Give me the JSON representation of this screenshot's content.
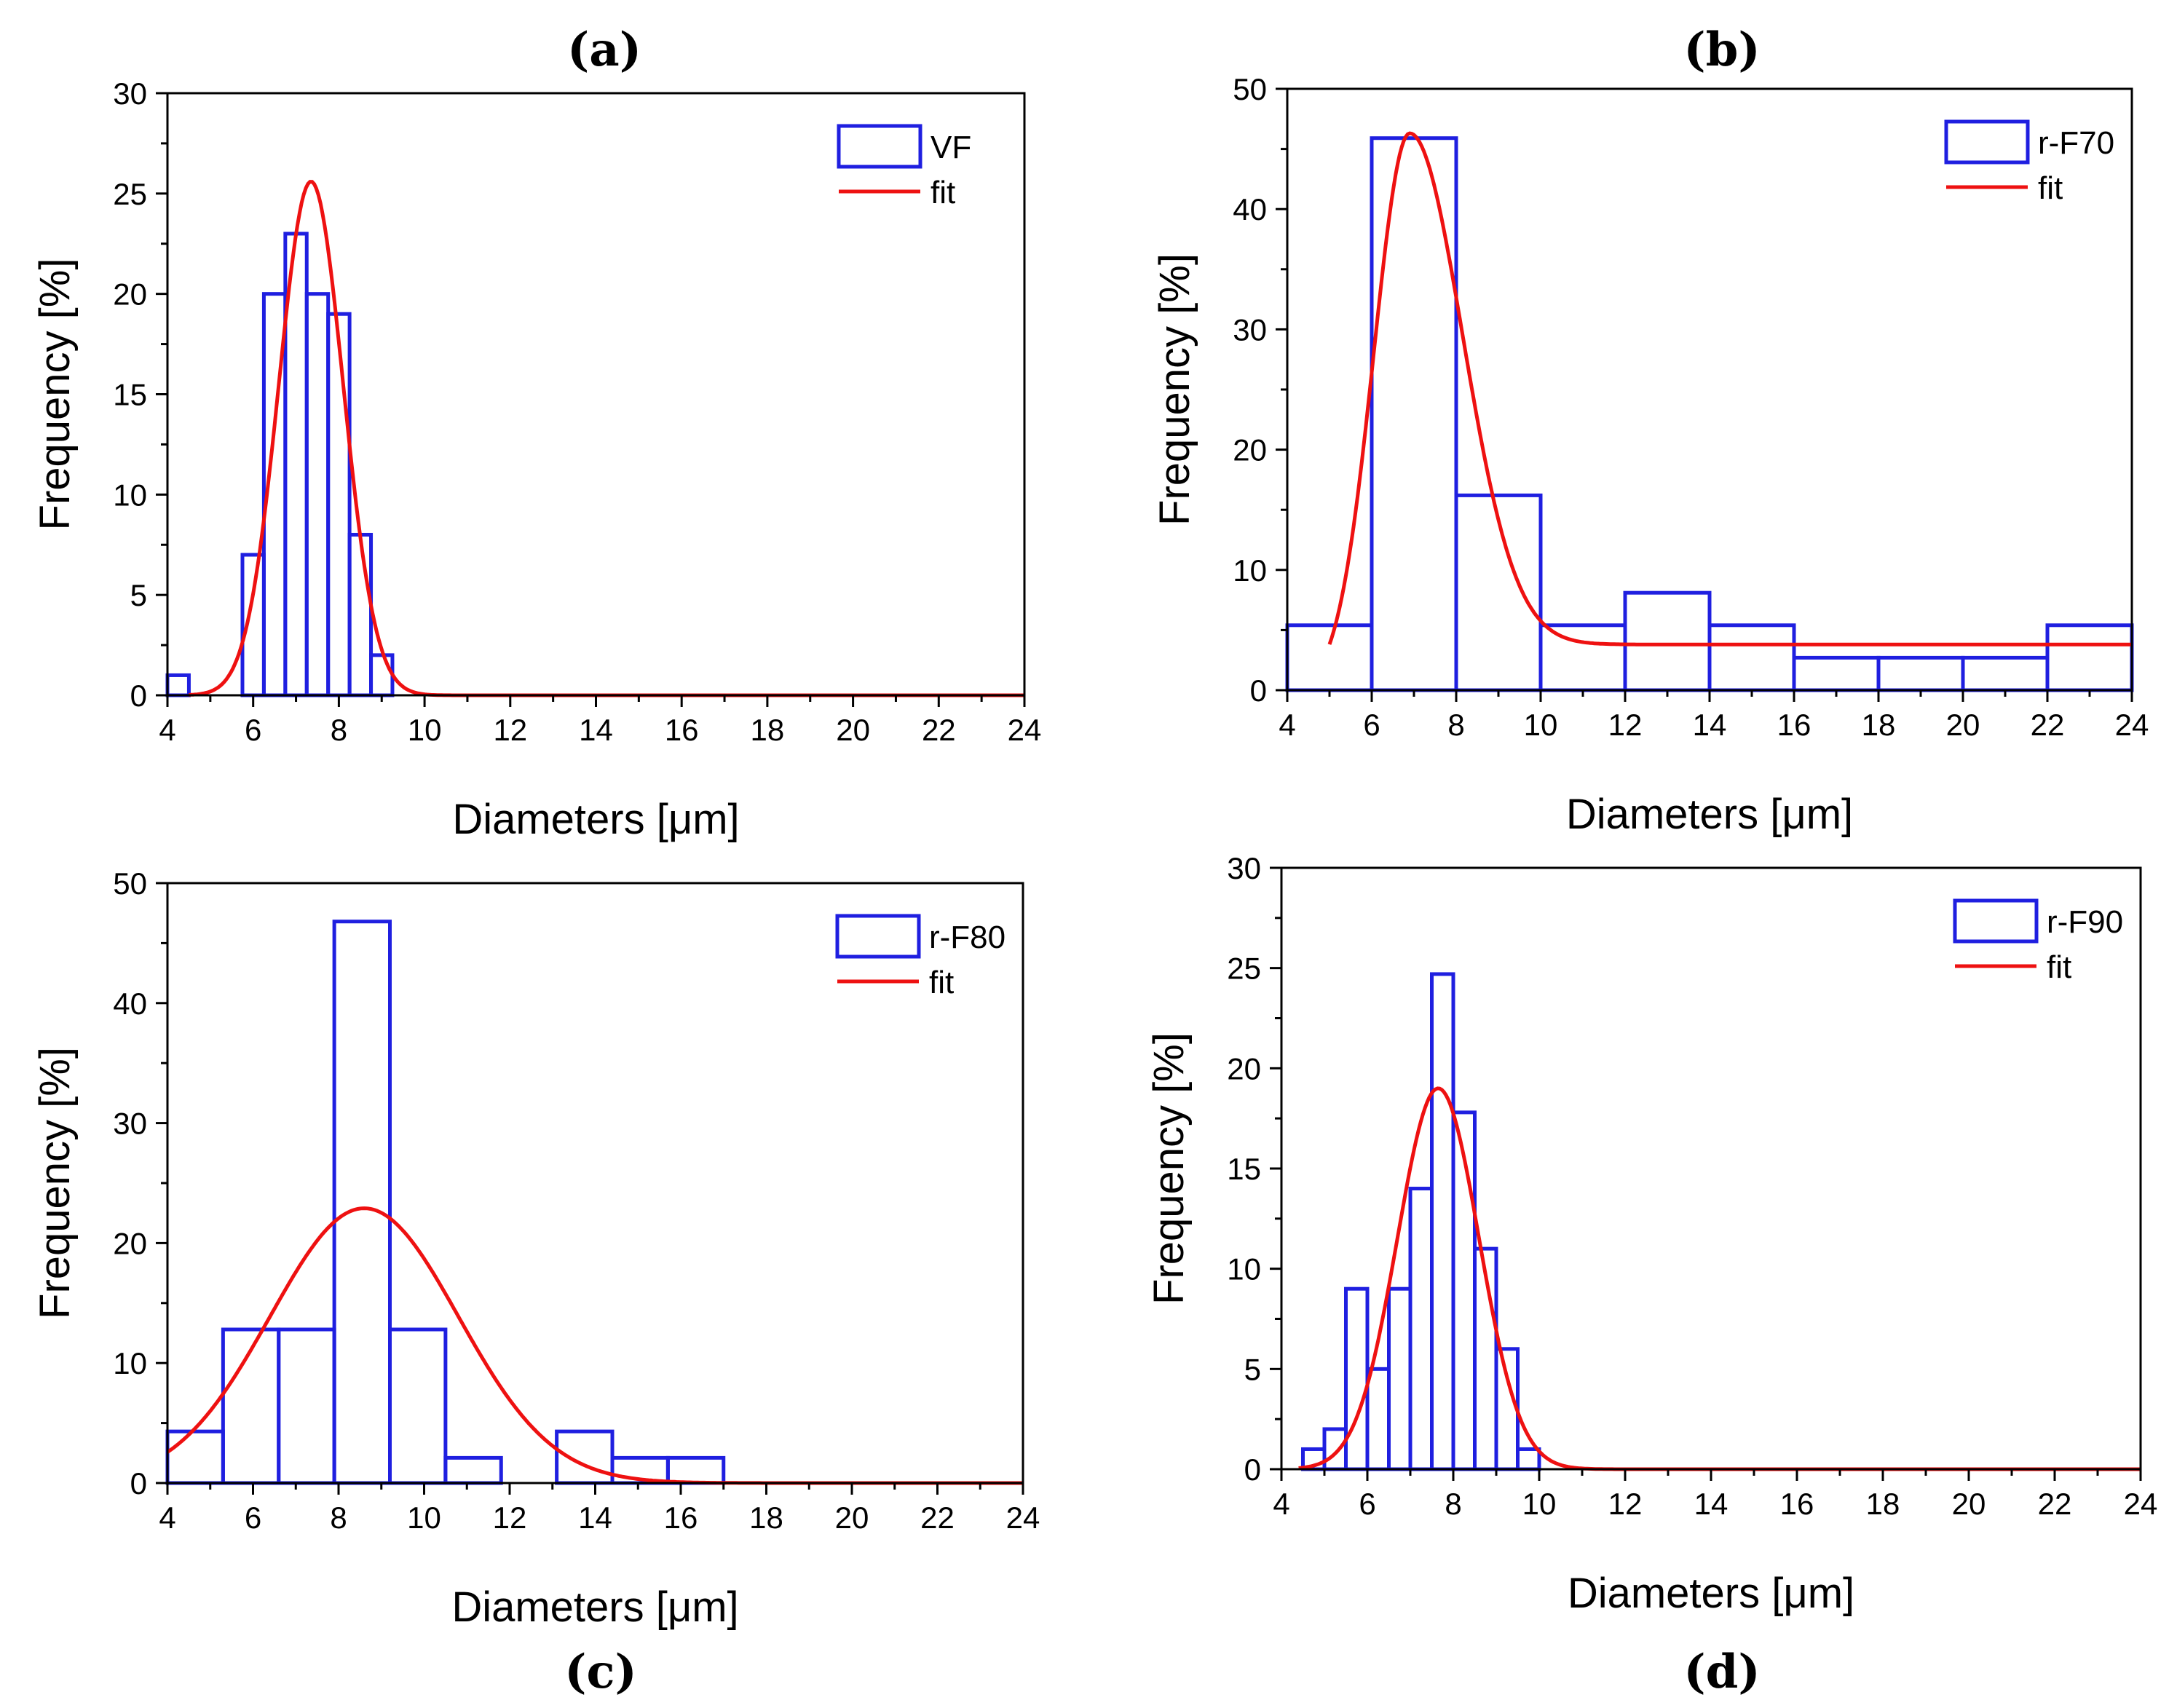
{
  "chart_data": [
    {
      "type": "bar",
      "panel_label": "(a)",
      "xlabel": "Diameters [μm]",
      "ylabel": "Frequency [%]",
      "xlim": [
        4,
        24
      ],
      "ylim": [
        0,
        30
      ],
      "xticks": [
        4,
        6,
        8,
        10,
        12,
        14,
        16,
        18,
        20,
        22,
        24
      ],
      "yticks": [
        0,
        5,
        10,
        15,
        20,
        25,
        30
      ],
      "legend_position": "top-right",
      "grid": false,
      "histogram": {
        "name": "VF",
        "bin_width": 0.5,
        "bin_starts": [
          4.0,
          5.75,
          6.25,
          6.75,
          7.25,
          7.75,
          8.25,
          8.75
        ],
        "values": [
          1,
          7,
          20,
          23,
          20,
          19,
          8,
          2
        ]
      },
      "fit": {
        "name": "fit",
        "kind": "gaussian",
        "center": 7.35,
        "peak": 25.6,
        "sigma": 0.75,
        "offset": 0,
        "x_start": 4.5,
        "x_end": 24
      }
    },
    {
      "type": "bar",
      "panel_label": "(b)",
      "xlabel": "Diameters [μm]",
      "ylabel": "Frequency [%]",
      "xlim": [
        4,
        24
      ],
      "ylim": [
        0,
        50
      ],
      "xticks": [
        4,
        6,
        8,
        10,
        12,
        14,
        16,
        18,
        20,
        22,
        24
      ],
      "yticks": [
        0,
        10,
        20,
        30,
        40,
        50
      ],
      "legend_position": "top-right",
      "grid": false,
      "histogram": {
        "name": "r-F70",
        "bin_width": 2,
        "bin_starts": [
          4,
          6,
          8,
          10,
          12,
          14,
          16,
          18,
          20,
          22
        ],
        "values": [
          5.4,
          45.9,
          16.2,
          5.4,
          8.1,
          5.4,
          2.7,
          2.7,
          2.7,
          5.4
        ]
      },
      "fit": {
        "name": "fit",
        "kind": "lognormal",
        "center": 6.9,
        "peak": 46.3,
        "sigma_low": 0.85,
        "sigma_high": 1.25,
        "offset": 3.8,
        "x_start": 5,
        "x_end": 24
      }
    },
    {
      "type": "bar",
      "panel_label": "(c)",
      "xlabel": "Diameters [μm]",
      "ylabel": "Frequency [%]",
      "xlim": [
        4,
        24
      ],
      "ylim": [
        0,
        50
      ],
      "xticks": [
        4,
        6,
        8,
        10,
        12,
        14,
        16,
        18,
        20,
        22,
        24
      ],
      "yticks": [
        0,
        10,
        20,
        30,
        40,
        50
      ],
      "legend_position": "top-right",
      "grid": false,
      "histogram": {
        "name": "r-F80",
        "bin_width": 1.3,
        "bin_starts": [
          4.0,
          5.3,
          6.6,
          7.9,
          9.2,
          10.5,
          11.8,
          13.1,
          14.4,
          15.7
        ],
        "values": [
          4.3,
          12.8,
          12.8,
          46.8,
          12.8,
          2.1,
          0,
          4.3,
          2.1,
          2.1
        ]
      },
      "fit": {
        "name": "fit",
        "kind": "gaussian",
        "center": 8.6,
        "peak": 22.9,
        "sigma": 2.2,
        "offset": 0,
        "x_start": 4,
        "x_end": 24
      }
    },
    {
      "type": "bar",
      "panel_label": "(d)",
      "xlabel": "Diameters [μm]",
      "ylabel": "Frequency [%]",
      "xlim": [
        4,
        24
      ],
      "ylim": [
        0,
        30
      ],
      "xticks": [
        4,
        6,
        8,
        10,
        12,
        14,
        16,
        18,
        20,
        22,
        24
      ],
      "yticks": [
        0,
        5,
        10,
        15,
        20,
        25,
        30
      ],
      "legend_position": "top-right",
      "grid": false,
      "histogram": {
        "name": "r-F90",
        "bin_width": 0.5,
        "bin_starts": [
          4.5,
          5.0,
          5.5,
          6.0,
          6.5,
          7.0,
          7.5,
          8.0,
          8.5,
          9.0,
          9.5
        ],
        "values": [
          1,
          2,
          9,
          5,
          9,
          14,
          24.7,
          17.8,
          11,
          6,
          1
        ]
      },
      "fit": {
        "name": "fit",
        "kind": "gaussian",
        "center": 7.65,
        "peak": 19,
        "sigma": 0.95,
        "offset": 0,
        "x_start": 4.4,
        "x_end": 24
      }
    }
  ]
}
